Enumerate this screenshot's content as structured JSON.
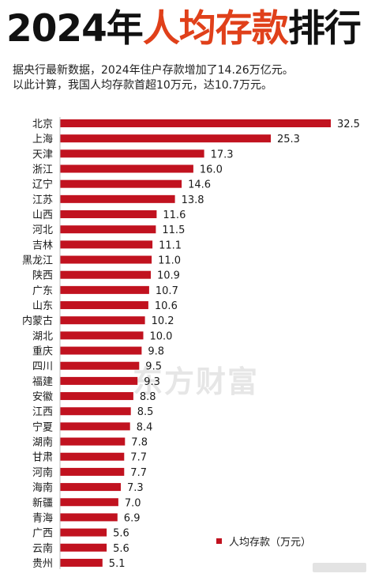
{
  "title": {
    "part1": "2024年",
    "part2": "人均存款",
    "part3": "排行"
  },
  "subtitle": {
    "line1": "据央行最新数据，2024年住户存款增加了14.26万亿元。",
    "line2": "以此计算，我国人均存款首超10万元，达10.7万元。"
  },
  "watermark": "东方财富",
  "colors": {
    "bar": "#c1121f",
    "title_accent": "#e0401a"
  },
  "chart_data": {
    "type": "bar",
    "orientation": "horizontal",
    "title": "2024年人均存款排行",
    "unit": "万元",
    "categories": [
      "北京",
      "上海",
      "天津",
      "浙江",
      "辽宁",
      "江苏",
      "山西",
      "河北",
      "吉林",
      "黑龙江",
      "陕西",
      "广东",
      "山东",
      "内蒙古",
      "湖北",
      "重庆",
      "四川",
      "福建",
      "安徽",
      "江西",
      "宁夏",
      "湖南",
      "甘肃",
      "河南",
      "海南",
      "新疆",
      "青海",
      "广西",
      "云南",
      "贵州"
    ],
    "series": [
      {
        "name": "人均存款（万元）",
        "values": [
          32.5,
          25.3,
          17.3,
          16.0,
          14.6,
          13.8,
          11.6,
          11.5,
          11.1,
          11.0,
          10.9,
          10.7,
          10.6,
          10.2,
          10.0,
          9.8,
          9.5,
          9.3,
          8.8,
          8.5,
          8.4,
          7.8,
          7.7,
          7.7,
          7.3,
          7.0,
          6.9,
          5.6,
          5.6,
          5.1
        ]
      }
    ],
    "value_labels": [
      "32.5",
      "25.3",
      "17.3",
      "16.0",
      "14.6",
      "13.8",
      "11.6",
      "11.5",
      "11.1",
      "11.0",
      "10.9",
      "10.7",
      "10.6",
      "10.2",
      "10.0",
      "9.8",
      "9.5",
      "9.3",
      "8.8",
      "8.5",
      "8.4",
      "7.8",
      "7.7",
      "7.7",
      "7.3",
      "7.0",
      "6.9",
      "5.6",
      "5.6",
      "5.1"
    ],
    "xlim": [
      0,
      32.5
    ],
    "grid": false,
    "legend": {
      "position": "bottom-right",
      "label": "人均存款（万元）"
    }
  }
}
